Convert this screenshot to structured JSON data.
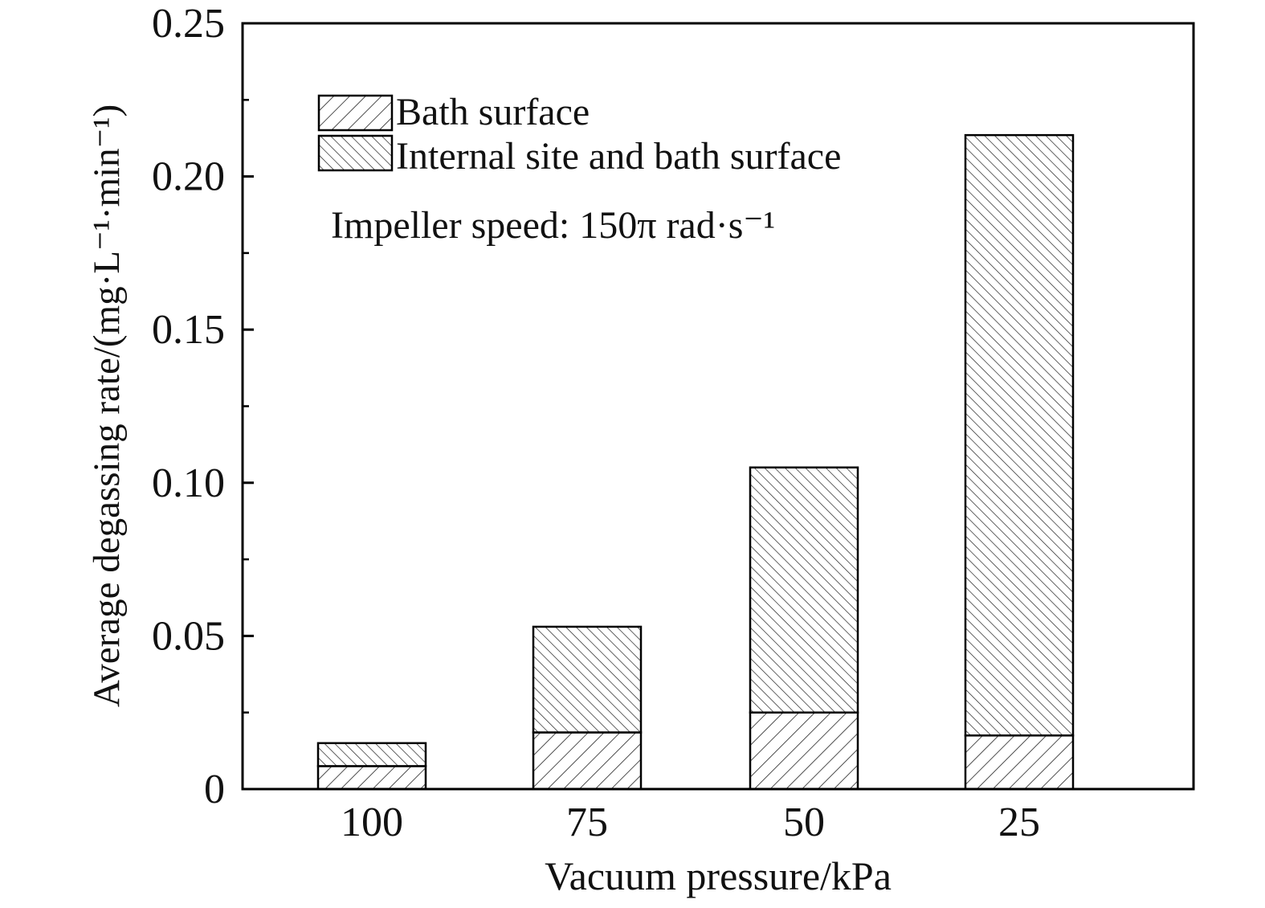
{
  "chart_data": {
    "type": "bar",
    "stacked": true,
    "categories": [
      "100",
      "75",
      "50",
      "25"
    ],
    "series": [
      {
        "name": "Bath surface",
        "values": [
          0.0075,
          0.0185,
          0.025,
          0.0175
        ]
      },
      {
        "name": "Internal site and bath surface",
        "values": [
          0.0075,
          0.0345,
          0.08,
          0.196
        ]
      }
    ],
    "xlabel": "Vacuum pressure/kPa",
    "ylabel": "Average degassing rate/(mg·L⁻¹·min⁻¹)",
    "ylim": [
      0,
      0.25
    ],
    "yticks": [
      "0",
      "0.05",
      "0.10",
      "0.15",
      "0.20",
      "0.25"
    ],
    "annotation": "Impeller speed: 150π rad·s⁻¹",
    "legend_position": "top-left",
    "grid": false,
    "colors": {
      "bar_fill": "#ffffff",
      "hatch": "#222222",
      "axis": "#000000"
    }
  }
}
